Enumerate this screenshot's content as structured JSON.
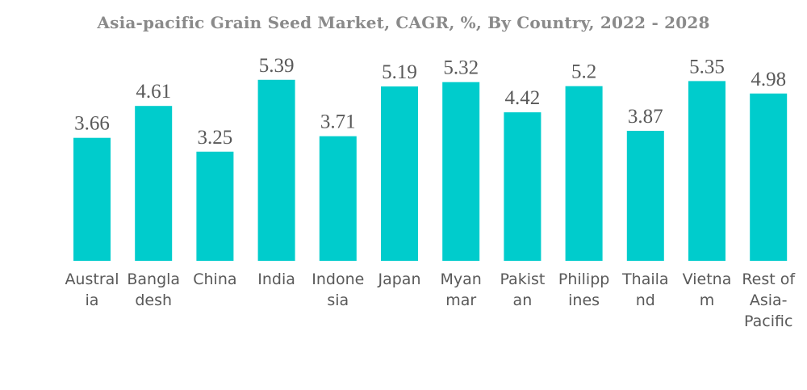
{
  "title": "Asia-pacific Grain Seed Market, CAGR, %, By Country, 2022 - 2028",
  "colors": {
    "bar": "#00cccc",
    "text": "#595959",
    "title": "#8a8a8a"
  },
  "chart_data": {
    "type": "bar",
    "title": "Asia-pacific Grain Seed Market, CAGR, %, By Country, 2022 - 2028",
    "xlabel": "",
    "ylabel": "",
    "ylim": [
      0,
      6
    ],
    "grid": false,
    "legend": "none",
    "categories": [
      "Australia",
      "Bangladesh",
      "China",
      "India",
      "Indonesia",
      "Japan",
      "Myanmar",
      "Pakistan",
      "Philippines",
      "Thailand",
      "Vietnam",
      "Rest of Asia-Pacific"
    ],
    "category_label_lines": [
      [
        "Austral",
        "ia"
      ],
      [
        "Bangla",
        "desh"
      ],
      [
        "China"
      ],
      [
        "India"
      ],
      [
        "Indone",
        "sia"
      ],
      [
        "Japan"
      ],
      [
        "Myan",
        "mar"
      ],
      [
        "Pakist",
        "an"
      ],
      [
        "Philipp",
        "ines"
      ],
      [
        "Thaila",
        "nd"
      ],
      [
        "Vietna",
        "m"
      ],
      [
        "Rest of",
        "Asia-",
        "Pacific"
      ]
    ],
    "values": [
      3.66,
      4.61,
      3.25,
      5.39,
      3.71,
      5.19,
      5.32,
      4.42,
      5.2,
      3.87,
      5.35,
      4.98
    ],
    "value_labels": [
      "3.66",
      "4.61",
      "3.25",
      "5.39",
      "3.71",
      "5.19",
      "5.32",
      "4.42",
      "5.2",
      "3.87",
      "5.35",
      "4.98"
    ]
  }
}
